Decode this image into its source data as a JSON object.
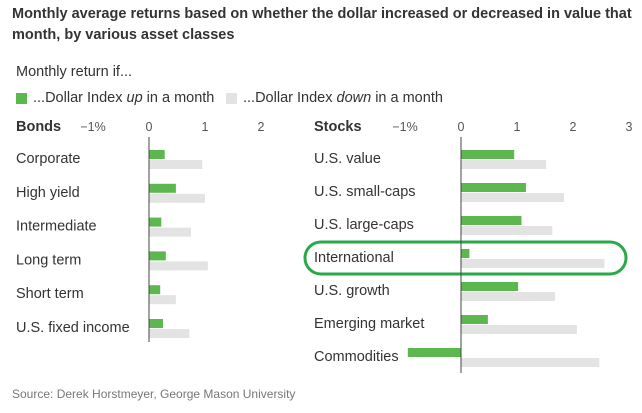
{
  "title": "Monthly average returns based on whether the dollar increased or decreased in value that month, by various asset classes",
  "subhead": "Monthly return if...",
  "legend": {
    "up": {
      "prefix": "...Dollar Index ",
      "emph": "up",
      "suffix": " in a month"
    },
    "down": {
      "prefix": "...Dollar Index ",
      "emph": "down",
      "suffix": " in a month"
    }
  },
  "source": "Source: Derek Horstmeyer, George Mason University",
  "colors": {
    "up": "#5cb84e",
    "down": "#e3e3e3",
    "highlight": "#2aa84a",
    "axis": "#444444",
    "text": "#333333"
  },
  "chart_data": [
    {
      "type": "bar",
      "title": "Bonds",
      "orientation": "horizontal",
      "xlim": [
        -1,
        2
      ],
      "ticks": [
        "−1%",
        "0",
        "1",
        "2"
      ],
      "tick_values": [
        -1,
        0,
        1,
        2
      ],
      "categories": [
        "Corporate",
        "High yield",
        "Intermediate",
        "Long term",
        "Short term",
        "U.S. fixed income"
      ],
      "series": [
        {
          "name": "...Dollar Index up in a month",
          "values": [
            0.28,
            0.48,
            0.22,
            0.3,
            0.2,
            0.25
          ]
        },
        {
          "name": "...Dollar Index down in a month",
          "values": [
            0.95,
            1.0,
            0.75,
            1.05,
            0.48,
            0.72
          ]
        }
      ]
    },
    {
      "type": "bar",
      "title": "Stocks",
      "orientation": "horizontal",
      "xlim": [
        -1,
        3
      ],
      "ticks": [
        "−1%",
        "0",
        "1",
        "2",
        "3"
      ],
      "tick_values": [
        -1,
        0,
        1,
        2,
        3
      ],
      "categories": [
        "U.S. value",
        "U.S. small-caps",
        "U.S. large-caps",
        "International",
        "U.S. growth",
        "Emerging market",
        "Commodities"
      ],
      "highlighted": "International",
      "series": [
        {
          "name": "...Dollar Index up in a month",
          "values": [
            0.95,
            1.16,
            1.08,
            0.15,
            1.02,
            0.48,
            -0.95
          ]
        },
        {
          "name": "...Dollar Index down in a month",
          "values": [
            1.52,
            1.84,
            1.63,
            2.56,
            1.68,
            2.07,
            2.47
          ]
        }
      ]
    }
  ]
}
